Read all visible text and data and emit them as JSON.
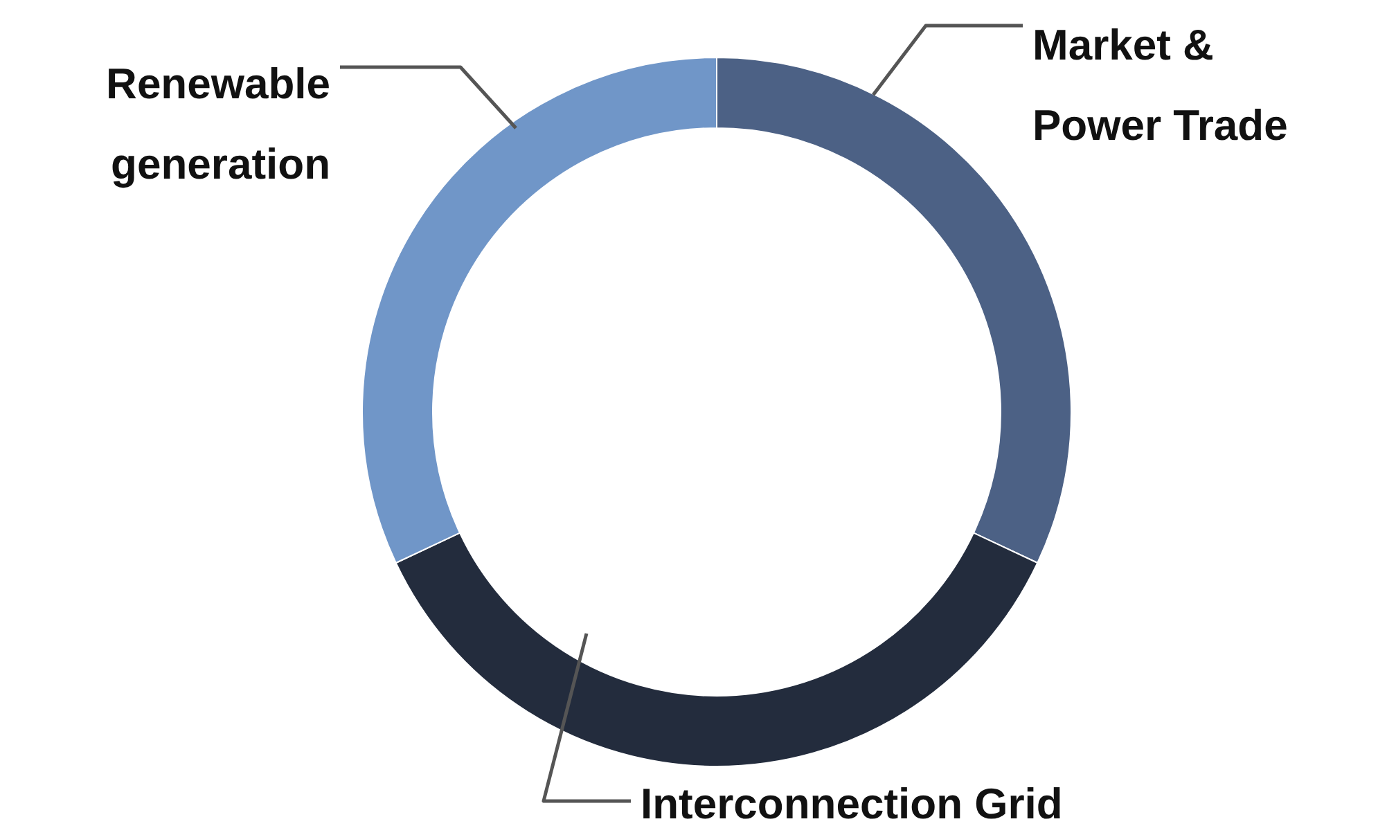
{
  "chart_data": {
    "type": "donut",
    "categories": [
      "Market & Power Trade",
      "Interconnection Grid",
      "Renewable generation"
    ],
    "values": [
      32,
      36,
      32
    ],
    "colors": [
      "#4c6185",
      "#232c3d",
      "#7096c8"
    ]
  }
}
